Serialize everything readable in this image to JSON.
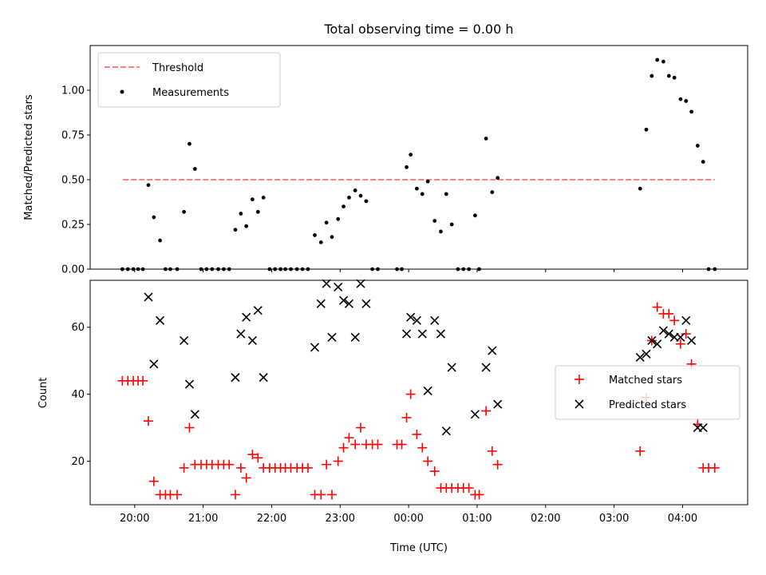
{
  "chart_data": [
    {
      "type": "scatter",
      "title": "Total observing time = 0.00 h",
      "xlabel": "",
      "ylabel": "Matched/Predicted stars",
      "xlim": [
        19.35,
        28.95
      ],
      "ylim": [
        0,
        1.25
      ],
      "y_ticks": [
        0.0,
        0.25,
        0.5,
        0.75,
        1.0
      ],
      "y_tick_labels": [
        "0.00",
        "0.25",
        "0.50",
        "0.75",
        "1.00"
      ],
      "grid": false,
      "legend_position": "upper-left",
      "threshold": {
        "name": "Threshold",
        "color": "#ff8080",
        "style": "dashed",
        "x": [
          19.83,
          28.47
        ],
        "y": 0.5
      },
      "series": [
        {
          "name": "Measurements",
          "marker": "dot",
          "color": "#000000",
          "x": [
            19.82,
            19.9,
            19.98,
            20.05,
            20.12,
            20.2,
            20.28,
            20.37,
            20.45,
            20.52,
            20.62,
            20.72,
            20.8,
            20.88,
            20.97,
            21.05,
            21.13,
            21.22,
            21.3,
            21.38,
            21.47,
            21.55,
            21.63,
            21.72,
            21.8,
            21.88,
            21.97,
            22.05,
            22.13,
            22.2,
            22.28,
            22.37,
            22.45,
            22.53,
            22.63,
            22.72,
            22.8,
            22.88,
            22.97,
            23.05,
            23.13,
            23.22,
            23.3,
            23.38,
            23.47,
            23.55,
            23.83,
            23.9,
            23.97,
            24.03,
            24.12,
            24.2,
            24.28,
            24.38,
            24.47,
            24.55,
            24.63,
            24.72,
            24.8,
            24.88,
            24.97,
            25.03,
            25.13,
            25.22,
            25.3,
            27.38,
            27.47,
            27.55,
            27.63,
            27.72,
            27.8,
            27.88,
            27.97,
            28.05,
            28.13,
            28.22,
            28.3,
            28.38,
            28.47
          ],
          "y": [
            0.0,
            0.0,
            0.0,
            0.0,
            0.0,
            0.47,
            0.29,
            0.16,
            0.0,
            0.0,
            0.0,
            0.32,
            0.7,
            0.56,
            0.0,
            0.0,
            0.0,
            0.0,
            0.0,
            0.0,
            0.22,
            0.31,
            0.24,
            0.39,
            0.32,
            0.4,
            0.0,
            0.0,
            0.0,
            0.0,
            0.0,
            0.0,
            0.0,
            0.0,
            0.19,
            0.15,
            0.26,
            0.18,
            0.28,
            0.35,
            0.4,
            0.44,
            0.41,
            0.38,
            0.0,
            0.0,
            0.0,
            0.0,
            0.57,
            0.64,
            0.45,
            0.42,
            0.49,
            0.27,
            0.21,
            0.42,
            0.25,
            0.0,
            0.0,
            0.0,
            0.3,
            0.0,
            0.73,
            0.43,
            0.51,
            0.45,
            0.78,
            1.08,
            1.17,
            1.16,
            1.08,
            1.07,
            0.95,
            0.94,
            0.88,
            0.69,
            0.6,
            0.0,
            0.0
          ]
        }
      ]
    },
    {
      "type": "scatter",
      "title": "",
      "xlabel": "Time (UTC)",
      "ylabel": "Count",
      "xlim": [
        19.35,
        28.95
      ],
      "ylim": [
        7,
        74
      ],
      "y_ticks": [
        20,
        40,
        60
      ],
      "y_tick_labels": [
        "20",
        "40",
        "60"
      ],
      "x_ticks": [
        20,
        21,
        22,
        23,
        24,
        25,
        26,
        27,
        28
      ],
      "x_tick_labels": [
        "20:00",
        "21:00",
        "22:00",
        "23:00",
        "00:00",
        "01:00",
        "02:00",
        "03:00",
        "04:00"
      ],
      "grid": false,
      "legend_position": "center-right",
      "series": [
        {
          "name": "Matched stars",
          "marker": "plus",
          "color": "#ff0000",
          "x": [
            19.82,
            19.9,
            19.98,
            20.05,
            20.12,
            20.2,
            20.28,
            20.37,
            20.45,
            20.52,
            20.62,
            20.72,
            20.8,
            20.88,
            20.97,
            21.05,
            21.13,
            21.22,
            21.3,
            21.38,
            21.47,
            21.55,
            21.63,
            21.72,
            21.8,
            21.88,
            21.97,
            22.05,
            22.13,
            22.2,
            22.28,
            22.37,
            22.45,
            22.53,
            22.63,
            22.72,
            22.8,
            22.88,
            22.97,
            23.05,
            23.13,
            23.22,
            23.3,
            23.38,
            23.47,
            23.55,
            23.83,
            23.9,
            23.97,
            24.03,
            24.12,
            24.2,
            24.28,
            24.38,
            24.47,
            24.55,
            24.63,
            24.72,
            24.8,
            24.88,
            24.97,
            25.03,
            25.13,
            25.22,
            25.3,
            27.38,
            27.47,
            27.55,
            27.63,
            27.72,
            27.8,
            27.88,
            27.97,
            28.05,
            28.13,
            28.22,
            28.3,
            28.38,
            28.47
          ],
          "y": [
            44,
            44,
            44,
            44,
            44,
            32,
            14,
            10,
            10,
            10,
            10,
            18,
            30,
            19,
            19,
            19,
            19,
            19,
            19,
            19,
            10,
            18,
            15,
            22,
            21,
            18,
            18,
            18,
            18,
            18,
            18,
            18,
            18,
            18,
            10,
            10,
            19,
            10,
            20,
            24,
            27,
            25,
            30,
            25,
            25,
            25,
            25,
            25,
            33,
            40,
            28,
            24,
            20,
            17,
            12,
            12,
            12,
            12,
            12,
            12,
            10,
            10,
            35,
            23,
            19,
            23,
            39,
            56,
            66,
            64,
            64,
            62,
            55,
            58,
            49,
            31,
            18,
            18,
            18
          ]
        },
        {
          "name": "Predicted stars",
          "marker": "cross",
          "color": "#000000",
          "x": [
            20.2,
            20.28,
            20.37,
            20.72,
            20.8,
            20.88,
            21.47,
            21.55,
            21.63,
            21.72,
            21.8,
            21.88,
            22.63,
            22.72,
            22.8,
            22.88,
            22.97,
            23.05,
            23.13,
            23.22,
            23.3,
            23.38,
            23.97,
            24.03,
            24.12,
            24.2,
            24.28,
            24.38,
            24.47,
            24.55,
            24.63,
            24.97,
            25.13,
            25.22,
            25.3,
            27.38,
            27.47,
            27.55,
            27.63,
            27.72,
            27.8,
            27.88,
            27.97,
            28.05,
            28.13,
            28.22,
            28.3
          ],
          "y": [
            69,
            49,
            62,
            56,
            43,
            34,
            45,
            58,
            63,
            56,
            65,
            45,
            54,
            67,
            73,
            57,
            72,
            68,
            67,
            57,
            73,
            67,
            58,
            63,
            62,
            58,
            41,
            62,
            58,
            29,
            48,
            34,
            48,
            53,
            37,
            51,
            52,
            56,
            55,
            59,
            58,
            57,
            57,
            62,
            56,
            30,
            30
          ]
        }
      ]
    }
  ]
}
